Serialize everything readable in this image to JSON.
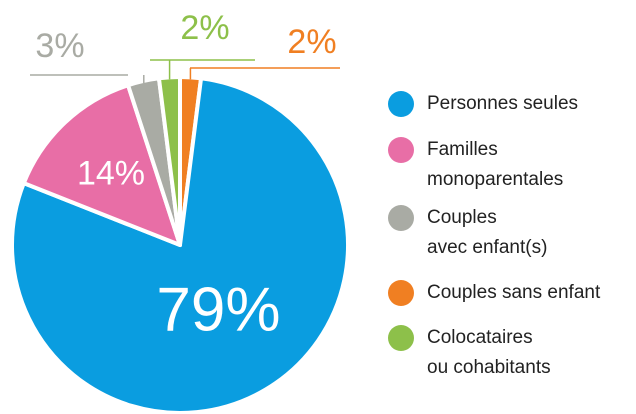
{
  "chart_data": {
    "type": "pie",
    "values": [
      2,
      79,
      14,
      3,
      2
    ],
    "value_labels": [
      "2%",
      "79%",
      "14%",
      "3%",
      "2%"
    ],
    "colors": [
      "#f07f22",
      "#0a9de0",
      "#e86ea6",
      "#a9aba4",
      "#8dc04a"
    ],
    "legend": [
      {
        "lines": [
          "Personnes seules"
        ],
        "color": "#0a9de0"
      },
      {
        "lines": [
          "Familles",
          "monoparentales"
        ],
        "color": "#e86ea6"
      },
      {
        "lines": [
          "Couples",
          "avec enfant(s)"
        ],
        "color": "#a9aba4"
      },
      {
        "lines": [
          "Couples sans enfant"
        ],
        "color": "#f07f22"
      },
      {
        "lines": [
          "Colocataires",
          "ou cohabitants"
        ],
        "color": "#8dc04a"
      }
    ]
  }
}
